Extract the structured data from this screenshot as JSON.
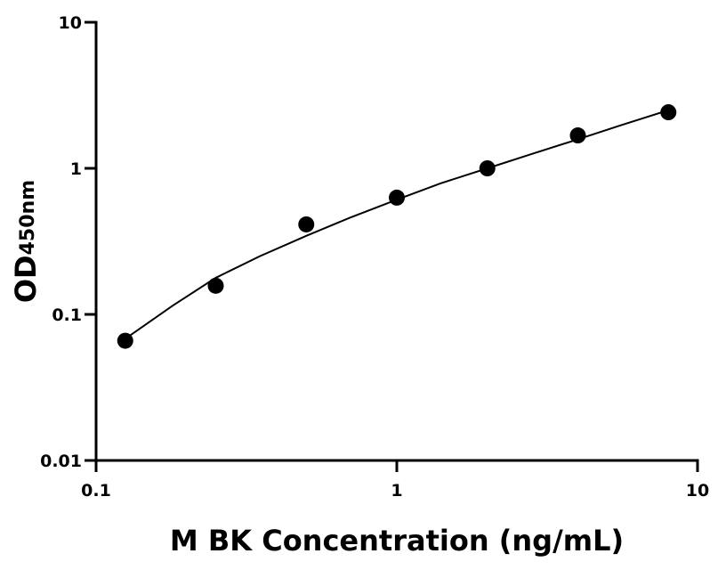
{
  "chart_data": {
    "type": "scatter",
    "xlabel": "M BK Concentration (ng/mL)",
    "ylabel": "OD",
    "ylabel_sub": "450nm",
    "xscale": "log",
    "yscale": "log",
    "xlim": [
      0.1,
      10
    ],
    "ylim": [
      0.01,
      10
    ],
    "xticks": [
      0.1,
      1,
      10
    ],
    "yticks": [
      0.01,
      0.1,
      1,
      10
    ],
    "color": "#000000",
    "points": {
      "x": [
        0.125,
        0.25,
        0.5,
        1,
        2,
        4,
        8
      ],
      "values": [
        0.066,
        0.157,
        0.413,
        0.63,
        1.0,
        1.68,
        2.42
      ]
    },
    "fit": {
      "x": [
        0.125,
        0.18,
        0.25,
        0.35,
        0.5,
        0.7,
        1,
        1.4,
        2,
        2.8,
        4,
        5.6,
        8
      ],
      "values": [
        0.068,
        0.115,
        0.178,
        0.25,
        0.345,
        0.46,
        0.61,
        0.79,
        1.0,
        1.25,
        1.58,
        1.98,
        2.5
      ]
    }
  }
}
